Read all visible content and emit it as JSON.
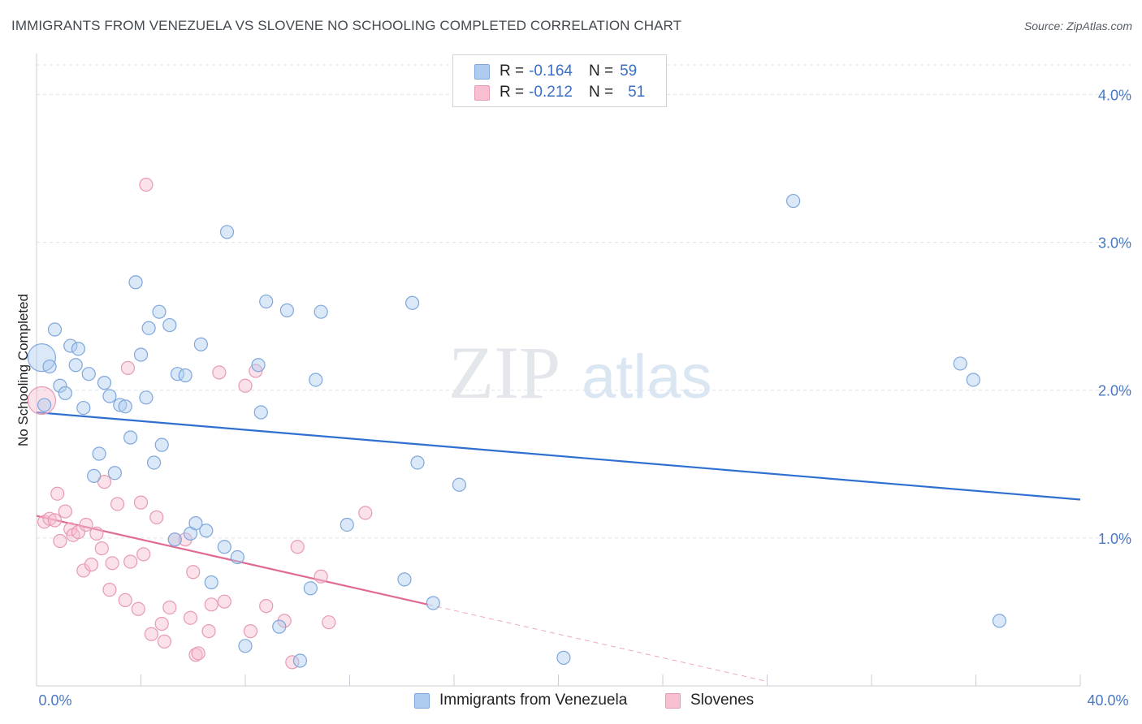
{
  "title": "IMMIGRANTS FROM VENEZUELA VS SLOVENE NO SCHOOLING COMPLETED CORRELATION CHART",
  "source": "Source: ZipAtlas.com",
  "watermark": {
    "zip": "ZIP",
    "atlas": "atlas"
  },
  "legend": {
    "rows": [
      {
        "r_label": "R =",
        "r_value": "-0.164",
        "n_label": "N =",
        "n_value": "59",
        "color": "#aecbf0"
      },
      {
        "r_label": "R =",
        "r_value": "-0.212",
        "n_label": "N =",
        "n_value": "51",
        "color": "#f7bfd0"
      }
    ]
  },
  "bottom_legend": [
    {
      "label": "Immigrants from Venezuela",
      "color": "#aecbf0"
    },
    {
      "label": "Slovenes",
      "color": "#f7bfd0"
    }
  ],
  "colors": {
    "blue_fill": "rgba(174,203,240,0.45)",
    "blue_stroke": "#7fa7dc",
    "blue_line": "#2f6fcf",
    "pink_fill": "rgba(247,191,208,0.45)",
    "pink_stroke": "#e89ab3",
    "pink_line": "#e06b92",
    "grid": "#dfe3e8",
    "tick_text": "#4a78c4"
  },
  "chart_data": {
    "type": "scatter",
    "title": "IMMIGRANTS FROM VENEZUELA VS SLOVENE NO SCHOOLING COMPLETED CORRELATION CHART",
    "xlabel": "",
    "ylabel": "No Schooling Completed",
    "xlim": [
      0,
      40
    ],
    "ylim": [
      0,
      4.2
    ],
    "y_ticks": [
      1.0,
      2.0,
      3.0,
      4.0
    ],
    "y_tick_labels": [
      "1.0%",
      "2.0%",
      "3.0%",
      "4.0%"
    ],
    "x_tick_labels": [
      "0.0%",
      "40.0%"
    ],
    "grid": true,
    "legend_position": "top-center",
    "series": [
      {
        "name": "Immigrants from Venezuela",
        "r": -0.164,
        "n": 59,
        "trend": {
          "x": [
            0,
            40
          ],
          "y": [
            1.85,
            1.26
          ]
        },
        "points": [
          {
            "x": 0.2,
            "y": 2.22,
            "big": true
          },
          {
            "x": 0.3,
            "y": 1.9
          },
          {
            "x": 0.5,
            "y": 2.16
          },
          {
            "x": 0.7,
            "y": 2.41
          },
          {
            "x": 0.9,
            "y": 2.03
          },
          {
            "x": 1.1,
            "y": 1.98
          },
          {
            "x": 1.3,
            "y": 2.3
          },
          {
            "x": 1.5,
            "y": 2.17
          },
          {
            "x": 1.6,
            "y": 2.28
          },
          {
            "x": 1.8,
            "y": 1.88
          },
          {
            "x": 2.0,
            "y": 2.11
          },
          {
            "x": 2.2,
            "y": 1.42
          },
          {
            "x": 2.4,
            "y": 1.57
          },
          {
            "x": 2.6,
            "y": 2.05
          },
          {
            "x": 2.8,
            "y": 1.96
          },
          {
            "x": 3.0,
            "y": 1.44
          },
          {
            "x": 3.2,
            "y": 1.9
          },
          {
            "x": 3.4,
            "y": 1.89
          },
          {
            "x": 3.6,
            "y": 1.68
          },
          {
            "x": 3.8,
            "y": 2.73
          },
          {
            "x": 4.0,
            "y": 2.24
          },
          {
            "x": 4.2,
            "y": 1.95
          },
          {
            "x": 4.3,
            "y": 2.42
          },
          {
            "x": 4.5,
            "y": 1.51
          },
          {
            "x": 4.7,
            "y": 2.53
          },
          {
            "x": 4.8,
            "y": 1.63
          },
          {
            "x": 5.1,
            "y": 2.44
          },
          {
            "x": 5.3,
            "y": 0.99
          },
          {
            "x": 5.4,
            "y": 2.11
          },
          {
            "x": 5.7,
            "y": 2.1
          },
          {
            "x": 5.9,
            "y": 1.03
          },
          {
            "x": 6.1,
            "y": 1.1
          },
          {
            "x": 6.3,
            "y": 2.31
          },
          {
            "x": 6.5,
            "y": 1.05
          },
          {
            "x": 6.7,
            "y": 0.7
          },
          {
            "x": 7.2,
            "y": 0.94
          },
          {
            "x": 7.3,
            "y": 3.07
          },
          {
            "x": 7.7,
            "y": 0.87
          },
          {
            "x": 8.0,
            "y": 0.27
          },
          {
            "x": 8.5,
            "y": 2.17
          },
          {
            "x": 8.6,
            "y": 1.85
          },
          {
            "x": 8.8,
            "y": 2.6
          },
          {
            "x": 9.3,
            "y": 0.4
          },
          {
            "x": 9.6,
            "y": 2.54
          },
          {
            "x": 10.1,
            "y": 0.17
          },
          {
            "x": 10.5,
            "y": 0.66
          },
          {
            "x": 10.7,
            "y": 2.07
          },
          {
            "x": 10.9,
            "y": 2.53
          },
          {
            "x": 11.9,
            "y": 1.09
          },
          {
            "x": 14.1,
            "y": 0.72
          },
          {
            "x": 14.4,
            "y": 2.59
          },
          {
            "x": 14.6,
            "y": 1.51
          },
          {
            "x": 15.2,
            "y": 0.56
          },
          {
            "x": 16.2,
            "y": 1.36
          },
          {
            "x": 20.2,
            "y": 0.19
          },
          {
            "x": 29.0,
            "y": 3.28
          },
          {
            "x": 35.4,
            "y": 2.18
          },
          {
            "x": 35.9,
            "y": 2.07
          },
          {
            "x": 36.9,
            "y": 0.44
          }
        ]
      },
      {
        "name": "Slovenes",
        "r": -0.212,
        "n": 51,
        "trend": {
          "x": [
            0,
            15
          ],
          "y": [
            1.15,
            0.55
          ]
        },
        "trend_dashed": {
          "x": [
            15,
            28
          ],
          "y": [
            0.55,
            0.03
          ]
        },
        "points": [
          {
            "x": 0.2,
            "y": 1.93,
            "big": true
          },
          {
            "x": 0.3,
            "y": 1.11
          },
          {
            "x": 0.5,
            "y": 1.13
          },
          {
            "x": 0.7,
            "y": 1.12
          },
          {
            "x": 0.8,
            "y": 1.3
          },
          {
            "x": 0.9,
            "y": 0.98
          },
          {
            "x": 1.1,
            "y": 1.18
          },
          {
            "x": 1.3,
            "y": 1.06
          },
          {
            "x": 1.4,
            "y": 1.02
          },
          {
            "x": 1.6,
            "y": 1.04
          },
          {
            "x": 1.8,
            "y": 0.78
          },
          {
            "x": 1.9,
            "y": 1.09
          },
          {
            "x": 2.1,
            "y": 0.82
          },
          {
            "x": 2.3,
            "y": 1.03
          },
          {
            "x": 2.5,
            "y": 0.93
          },
          {
            "x": 2.6,
            "y": 1.38
          },
          {
            "x": 2.8,
            "y": 0.65
          },
          {
            "x": 2.9,
            "y": 0.83
          },
          {
            "x": 3.1,
            "y": 1.23
          },
          {
            "x": 3.4,
            "y": 0.58
          },
          {
            "x": 3.5,
            "y": 2.15
          },
          {
            "x": 3.6,
            "y": 0.84
          },
          {
            "x": 3.9,
            "y": 0.52
          },
          {
            "x": 4.0,
            "y": 1.24
          },
          {
            "x": 4.1,
            "y": 0.89
          },
          {
            "x": 4.2,
            "y": 3.39
          },
          {
            "x": 4.4,
            "y": 0.35
          },
          {
            "x": 4.6,
            "y": 1.14
          },
          {
            "x": 4.8,
            "y": 0.42
          },
          {
            "x": 4.9,
            "y": 0.3
          },
          {
            "x": 5.1,
            "y": 0.53
          },
          {
            "x": 5.3,
            "y": 0.99
          },
          {
            "x": 5.7,
            "y": 0.99
          },
          {
            "x": 5.9,
            "y": 0.46
          },
          {
            "x": 6.0,
            "y": 0.77
          },
          {
            "x": 6.1,
            "y": 0.21
          },
          {
            "x": 6.2,
            "y": 0.22
          },
          {
            "x": 6.6,
            "y": 0.37
          },
          {
            "x": 6.7,
            "y": 0.55
          },
          {
            "x": 7.0,
            "y": 2.12
          },
          {
            "x": 7.2,
            "y": 0.57
          },
          {
            "x": 8.0,
            "y": 2.03
          },
          {
            "x": 8.2,
            "y": 0.37
          },
          {
            "x": 8.4,
            "y": 2.13
          },
          {
            "x": 8.8,
            "y": 0.54
          },
          {
            "x": 9.5,
            "y": 0.44
          },
          {
            "x": 9.8,
            "y": 0.16
          },
          {
            "x": 10.0,
            "y": 0.94
          },
          {
            "x": 10.9,
            "y": 0.74
          },
          {
            "x": 11.2,
            "y": 0.43
          },
          {
            "x": 12.6,
            "y": 1.17
          }
        ]
      }
    ]
  }
}
